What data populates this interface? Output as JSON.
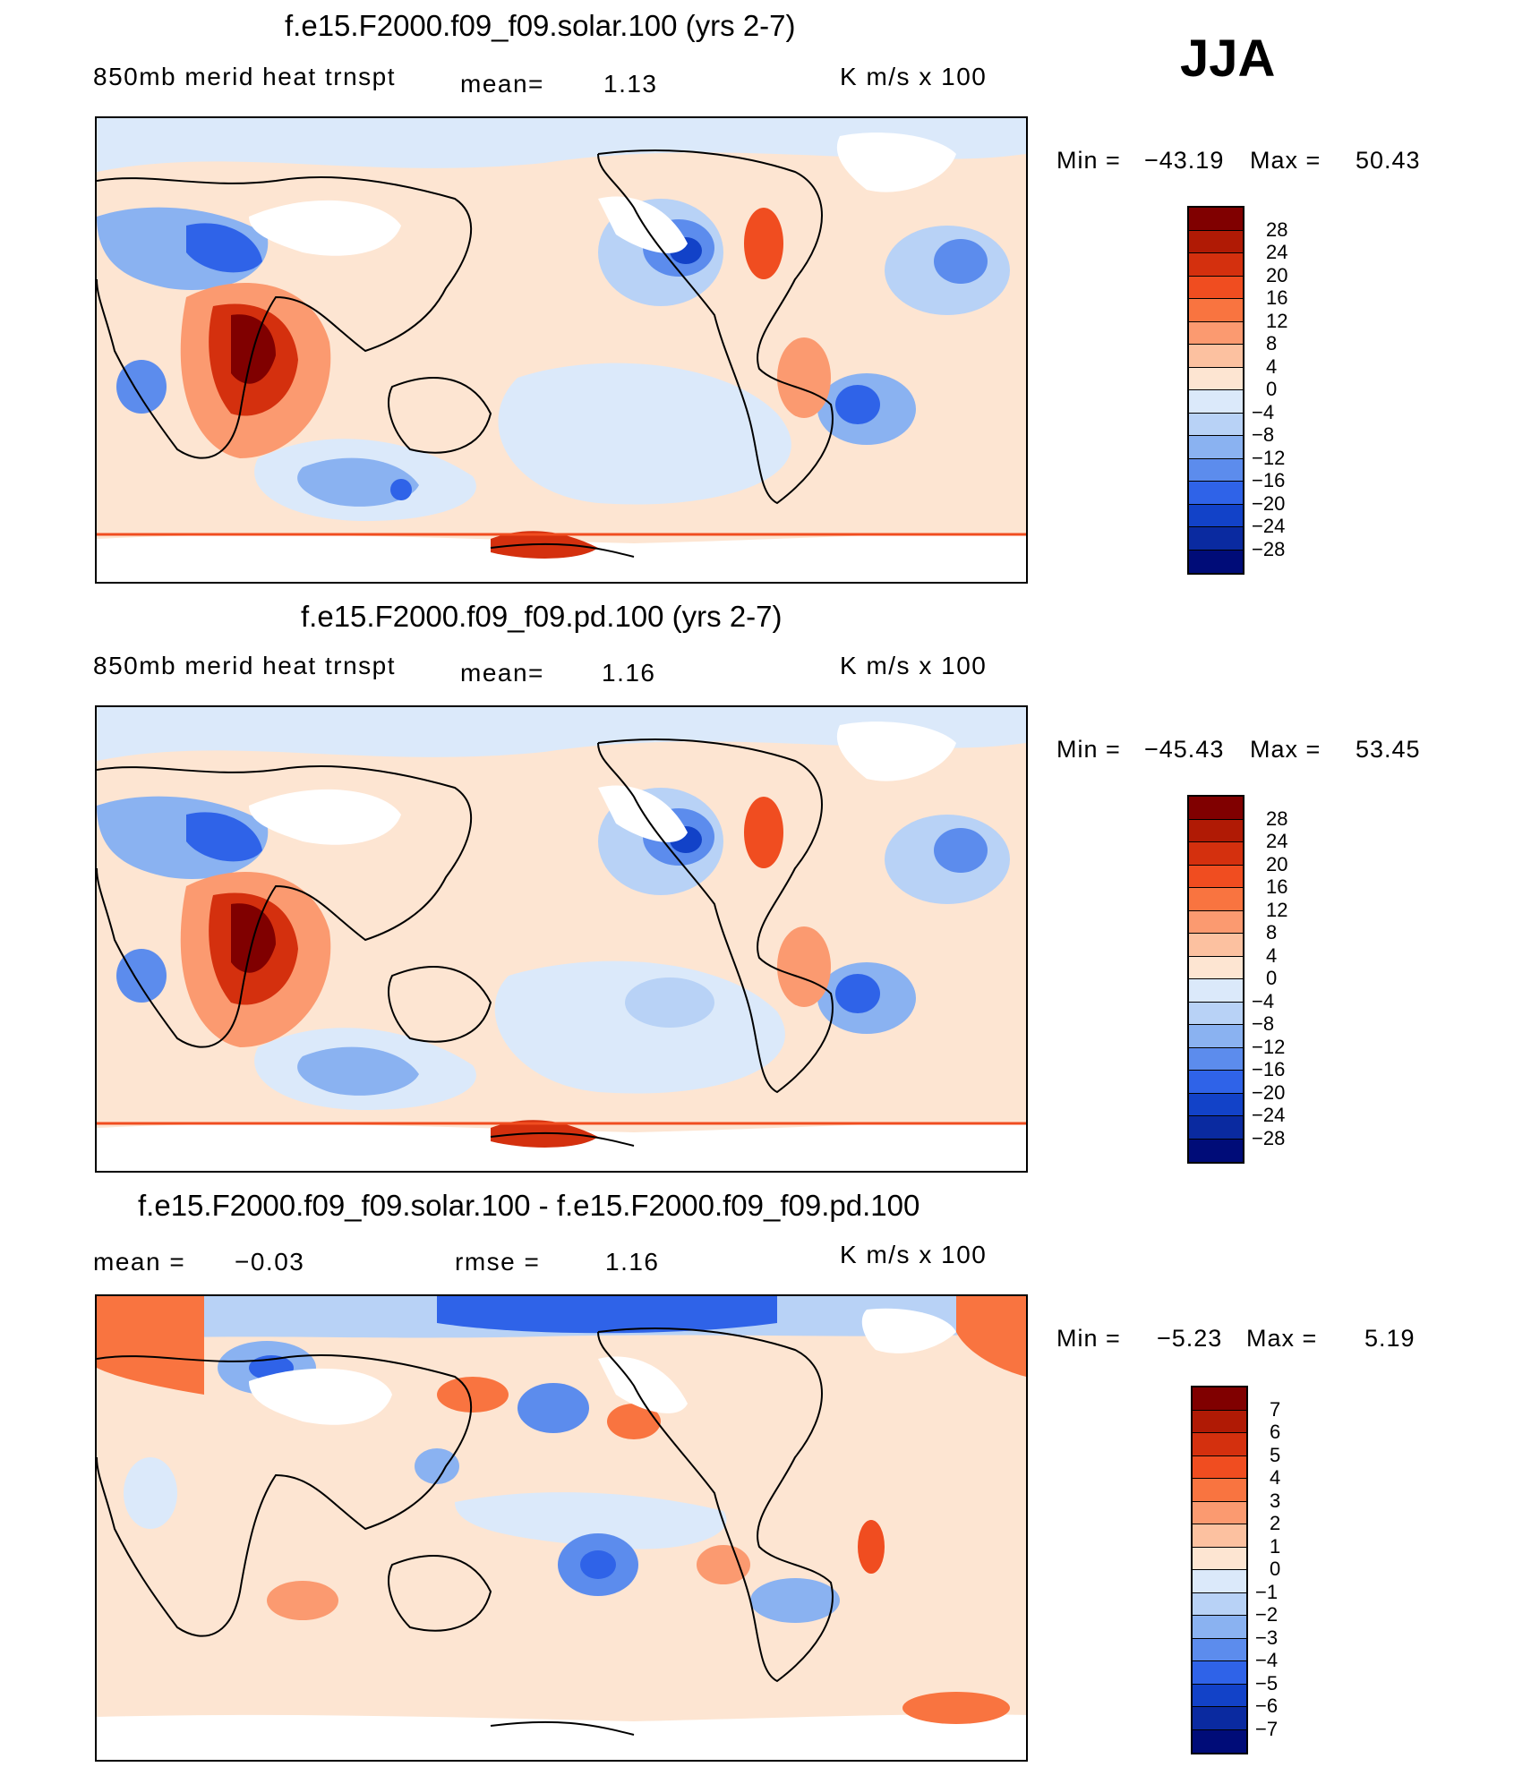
{
  "season": "JJA",
  "panels": [
    {
      "title": "f.e15.F2000.f09_f09.solar.100 (yrs 2-7)",
      "variable": "850mb merid heat trnspt",
      "mean_label": "mean=",
      "mean_value": "1.13",
      "units": "K m/s x 100",
      "min_label": "Min =",
      "min_value": "−43.19",
      "max_label": "Max =",
      "max_value": "50.43"
    },
    {
      "title": "f.e15.F2000.f09_f09.pd.100 (yrs 2-7)",
      "variable": "850mb merid heat trnspt",
      "mean_label": "mean=",
      "mean_value": "1.16",
      "units": "K m/s x 100",
      "min_label": "Min =",
      "min_value": "−45.43",
      "max_label": "Max =",
      "max_value": "53.45"
    },
    {
      "title": "f.e15.F2000.f09_f09.solar.100 - f.e15.F2000.f09_f09.pd.100",
      "mean_label": "mean =",
      "mean_value": "−0.03",
      "rmse_label": "rmse =",
      "rmse_value": "1.16",
      "units": "K m/s x 100",
      "min_label": "Min =",
      "min_value": "−5.23",
      "max_label": "Max =",
      "max_value": "5.19"
    }
  ],
  "colorbars": [
    {
      "labels": [
        "28",
        "24",
        "20",
        "16",
        "12",
        "8",
        "4",
        "0",
        "−4",
        "−8",
        "−12",
        "−16",
        "−20",
        "−24",
        "−28"
      ],
      "colors": [
        "#800000",
        "#b01a05",
        "#d4300e",
        "#f04d20",
        "#f97440",
        "#fb9a70",
        "#fcc1a0",
        "#fde5d2",
        "#dbe9fa",
        "#b8d2f6",
        "#8ab2f1",
        "#5c8ced",
        "#2f63e8",
        "#1242c8",
        "#0a2aa0",
        "#000c78"
      ]
    },
    {
      "labels": [
        "28",
        "24",
        "20",
        "16",
        "12",
        "8",
        "4",
        "0",
        "−4",
        "−8",
        "−12",
        "−16",
        "−20",
        "−24",
        "−28"
      ],
      "colors": [
        "#800000",
        "#b01a05",
        "#d4300e",
        "#f04d20",
        "#f97440",
        "#fb9a70",
        "#fcc1a0",
        "#fde5d2",
        "#dbe9fa",
        "#b8d2f6",
        "#8ab2f1",
        "#5c8ced",
        "#2f63e8",
        "#1242c8",
        "#0a2aa0",
        "#000c78"
      ]
    },
    {
      "labels": [
        "7",
        "6",
        "5",
        "4",
        "3",
        "2",
        "1",
        "0",
        "−1",
        "−2",
        "−3",
        "−4",
        "−5",
        "−6",
        "−7"
      ],
      "colors": [
        "#800000",
        "#b01a05",
        "#d4300e",
        "#f04d20",
        "#f97440",
        "#fb9a70",
        "#fcc1a0",
        "#fde5d2",
        "#dbe9fa",
        "#b8d2f6",
        "#8ab2f1",
        "#5c8ced",
        "#2f63e8",
        "#1242c8",
        "#0a2aa0",
        "#000c78"
      ]
    }
  ],
  "chart_data": [
    {
      "type": "heatmap",
      "title": "f.e15.F2000.f09_f09.solar.100 (yrs 2-7)",
      "field": "850mb merid heat trnspt",
      "units": "K m/s x 100",
      "mean": 1.13,
      "min": -43.19,
      "max": 50.43,
      "levels": [
        -28,
        -24,
        -20,
        -16,
        -12,
        -8,
        -4,
        0,
        4,
        8,
        12,
        16,
        20,
        24,
        28
      ],
      "projection": "cylindrical equidistant, Pacific-centered"
    },
    {
      "type": "heatmap",
      "title": "f.e15.F2000.f09_f09.pd.100 (yrs 2-7)",
      "field": "850mb merid heat trnspt",
      "units": "K m/s x 100",
      "mean": 1.16,
      "min": -45.43,
      "max": 53.45,
      "levels": [
        -28,
        -24,
        -20,
        -16,
        -12,
        -8,
        -4,
        0,
        4,
        8,
        12,
        16,
        20,
        24,
        28
      ],
      "projection": "cylindrical equidistant, Pacific-centered"
    },
    {
      "type": "heatmap",
      "title": "f.e15.F2000.f09_f09.solar.100 - f.e15.F2000.f09_f09.pd.100",
      "units": "K m/s x 100",
      "mean": -0.03,
      "rmse": 1.16,
      "min": -5.23,
      "max": 5.19,
      "levels": [
        -7,
        -6,
        -5,
        -4,
        -3,
        -2,
        -1,
        0,
        1,
        2,
        3,
        4,
        5,
        6,
        7
      ],
      "projection": "cylindrical equidistant, Pacific-centered"
    }
  ]
}
